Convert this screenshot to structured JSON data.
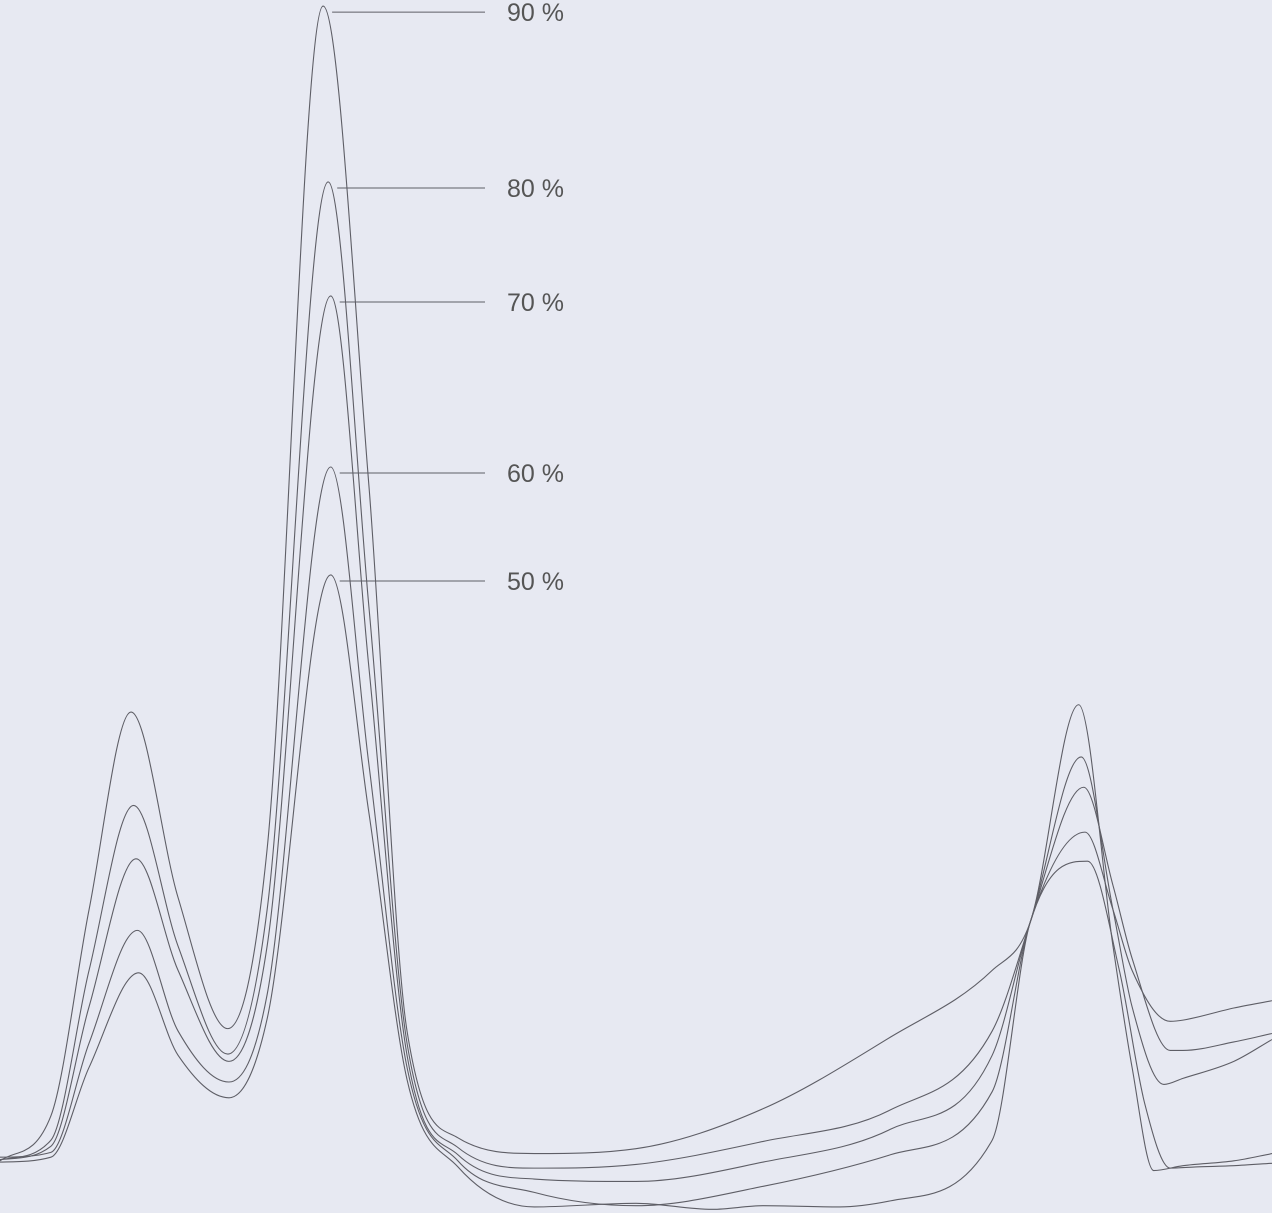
{
  "chart_data": {
    "type": "line",
    "title": "",
    "xlabel": "",
    "ylabel": "",
    "xlim": [
      0,
      100
    ],
    "ylim": [
      0,
      100
    ],
    "grid": false,
    "axes_visible": false,
    "legend": "inline labels at main peak",
    "line_color": "#5e5e66",
    "background": "#e7e9f2",
    "series": [
      {
        "name": "90 %",
        "x": [
          0,
          4,
          7,
          10.3,
          14,
          17.9,
          21,
          25.4,
          29,
          32,
          36,
          42,
          50,
          60,
          70,
          78,
          81,
          84.8,
          87.5,
          89,
          90.7,
          93,
          97,
          100
        ],
        "y": [
          4.3,
          8,
          25,
          41.3,
          26,
          15.2,
          30,
          99.5,
          60,
          15,
          6.2,
          4.9,
          5.3,
          8.6,
          14.5,
          20,
          24,
          41.9,
          22,
          12,
          3.5,
          3.9,
          4.3,
          4.9
        ]
      },
      {
        "name": "80 %",
        "x": [
          0,
          4,
          7,
          10.5,
          14,
          17.9,
          21,
          25.8,
          29,
          32,
          36,
          42,
          50,
          60,
          70,
          78,
          81,
          85,
          87.5,
          89,
          91.5,
          93,
          97,
          100
        ],
        "y": [
          4.4,
          6,
          20,
          33.6,
          22,
          13.1,
          25,
          85,
          50,
          14,
          5.4,
          3.7,
          4,
          5.9,
          8.5,
          15,
          24,
          37.6,
          25,
          17,
          10.6,
          11.1,
          12.5,
          14.3
        ]
      },
      {
        "name": "70 %",
        "x": [
          0,
          4,
          7,
          10.7,
          14,
          18,
          21,
          26,
          29,
          32,
          36,
          42,
          50,
          60,
          70,
          78,
          81,
          85.2,
          87.5,
          89,
          92,
          93,
          97,
          100
        ],
        "y": [
          4.4,
          5.5,
          17,
          29.2,
          20,
          12.5,
          22,
          75.6,
          45,
          13,
          4.8,
          2.8,
          2.6,
          4.2,
          6.9,
          13,
          24,
          35.1,
          27,
          21,
          13.4,
          13.4,
          14.1,
          14.8
        ]
      },
      {
        "name": "60 %",
        "x": [
          0,
          4,
          7,
          10.8,
          14,
          18,
          21,
          26,
          29,
          32,
          36,
          42,
          50,
          60,
          70,
          78,
          81,
          85.3,
          87.5,
          89,
          92,
          93,
          97,
          100
        ],
        "y": [
          4.6,
          5,
          14,
          23.3,
          15,
          10.8,
          18,
          61.5,
          37,
          12,
          4.3,
          1.7,
          0.6,
          2.2,
          4.8,
          10,
          24,
          31.4,
          25,
          20,
          15.8,
          15.9,
          16.9,
          17.5
        ]
      },
      {
        "name": "50 %",
        "x": [
          0,
          4,
          7,
          10.9,
          14,
          18,
          21,
          26,
          29,
          32,
          36,
          42,
          50,
          56,
          60,
          66,
          70,
          78,
          81,
          85.5,
          88,
          90,
          92,
          94,
          97,
          100
        ],
        "y": [
          4.2,
          4.6,
          12,
          19.8,
          13,
          9.5,
          16,
          52.6,
          33,
          11,
          3.8,
          0.5,
          0.8,
          0.3,
          0.6,
          0.5,
          1,
          6,
          24,
          29,
          20,
          9,
          3.7,
          3.8,
          3.9,
          4.1
        ]
      }
    ]
  }
}
